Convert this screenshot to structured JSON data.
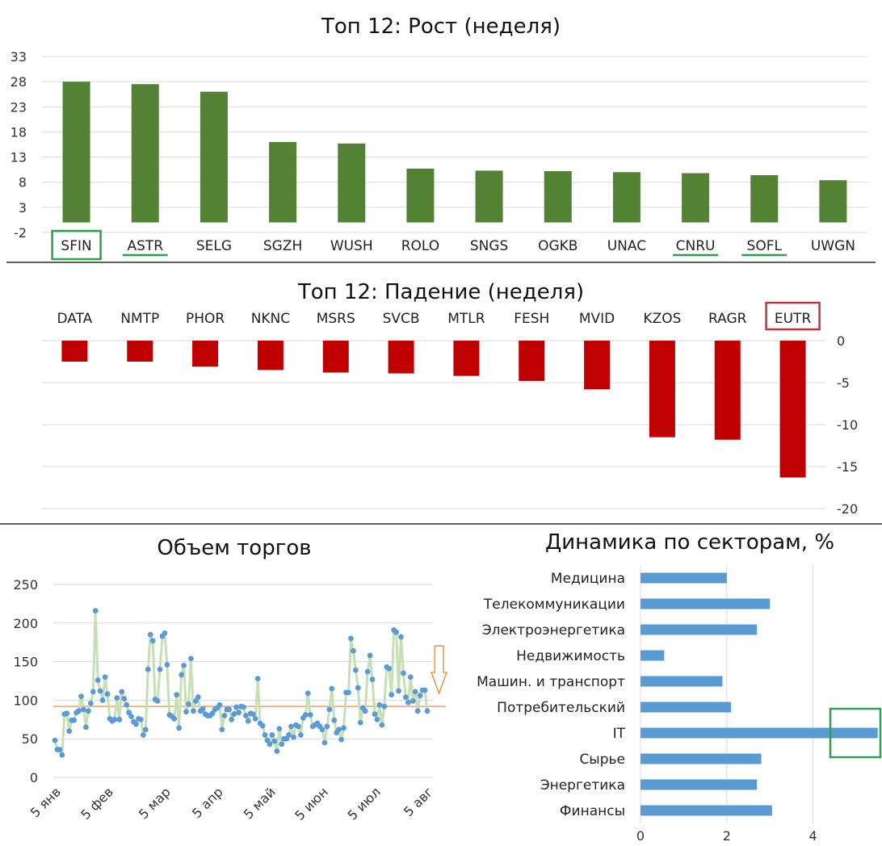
{
  "chart_data": [
    {
      "type": "bar",
      "title": "Топ 12: Рост (неделя)",
      "categories": [
        "SFIN",
        "ASTR",
        "SELG",
        "SGZH",
        "WUSH",
        "ROLO",
        "SNGS",
        "OGKB",
        "UNAC",
        "CNRU",
        "SOFL",
        "UWGN"
      ],
      "values": [
        28.0,
        27.5,
        26.0,
        16.0,
        15.7,
        10.7,
        10.3,
        10.2,
        10.0,
        9.8,
        9.4,
        8.4
      ],
      "ylim": [
        -2,
        33
      ],
      "yticks": [
        "33",
        "28",
        "23",
        "18",
        "13",
        "8",
        "3",
        "-2"
      ],
      "color": "#548235",
      "highlight_box": [
        "SFIN"
      ],
      "highlight_underline": [
        "ASTR",
        "CNRU",
        "SOFL"
      ],
      "highlight_color": "#2e9e4f"
    },
    {
      "type": "bar",
      "title": "Топ 12: Падение (неделя)",
      "categories": [
        "DATA",
        "NMTP",
        "PHOR",
        "NKNC",
        "MSRS",
        "SVCB",
        "MTLR",
        "FESH",
        "MVID",
        "KZOS",
        "RAGR",
        "EUTR"
      ],
      "values": [
        -2.5,
        -2.5,
        -3.1,
        -3.5,
        -3.8,
        -3.9,
        -4.2,
        -4.8,
        -5.8,
        -11.5,
        -11.8,
        -16.3
      ],
      "ylim": [
        -20,
        0
      ],
      "yticks": [
        "0",
        "-5",
        "-10",
        "-15",
        "-20"
      ],
      "color": "#c00000",
      "highlight_box": [
        "EUTR"
      ],
      "highlight_color": "#c0353a"
    },
    {
      "type": "line",
      "title": "Объем торгов",
      "xticks": [
        "5 янв",
        "5 фев",
        "5 мар",
        "5 апр",
        "5 май",
        "5 июн",
        "5 июл",
        "5 авг"
      ],
      "yticks": [
        "250",
        "200",
        "150",
        "100",
        "50",
        "0"
      ],
      "ylim": [
        0,
        250
      ],
      "average": 92,
      "line_color": "#c5e0b4",
      "point_color": "#5b9bd5",
      "average_color": "#ed7d31",
      "values": [
        48,
        36,
        36,
        29,
        82,
        83,
        60,
        74,
        74,
        84,
        86,
        105,
        88,
        65,
        86,
        96,
        111,
        216,
        126,
        112,
        100,
        130,
        108,
        76,
        73,
        75,
        103,
        75,
        111,
        102,
        94,
        84,
        79,
        72,
        69,
        76,
        75,
        55,
        62,
        140,
        185,
        177,
        101,
        99,
        140,
        183,
        187,
        146,
        81,
        79,
        76,
        107,
        64,
        133,
        145,
        85,
        95,
        154,
        86,
        99,
        104,
        86,
        89,
        82,
        80,
        80,
        83,
        88,
        90,
        94,
        62,
        80,
        88,
        88,
        75,
        82,
        91,
        84,
        92,
        91,
        80,
        73,
        83,
        82,
        76,
        128,
        70,
        67,
        55,
        48,
        43,
        55,
        47,
        34,
        63,
        43,
        50,
        50,
        55,
        66,
        52,
        68,
        66,
        55,
        77,
        81,
        109,
        81,
        66,
        68,
        70,
        66,
        62,
        45,
        66,
        88,
        115,
        74,
        58,
        62,
        49,
        64,
        110,
        110,
        180,
        164,
        139,
        116,
        71,
        90,
        86,
        137,
        158,
        127,
        82,
        75,
        94,
        68,
        92,
        143,
        141,
        107,
        191,
        188,
        112,
        182,
        135,
        104,
        97,
        130,
        99,
        111,
        86,
        106,
        113,
        113,
        86
      ]
    },
    {
      "type": "bar",
      "orientation": "horizontal",
      "title": "Динамика по секторам, %",
      "categories": [
        "Медицина",
        "Телекоммуникации",
        "Электроэнергетика",
        "Недвижимость",
        "Машин. и транспорт",
        "Потребительский",
        "IT",
        "Сырье",
        "Энергетика",
        "Финансы"
      ],
      "values": [
        2.0,
        3.0,
        2.7,
        0.55,
        1.9,
        2.1,
        5.5,
        2.8,
        2.7,
        3.05
      ],
      "xlim": [
        0,
        5.5
      ],
      "xticks": [
        "0",
        "2",
        "4"
      ],
      "color": "#5b9bd5",
      "highlight_box": [
        "IT"
      ],
      "highlight_color": "#2e9e4f"
    }
  ]
}
